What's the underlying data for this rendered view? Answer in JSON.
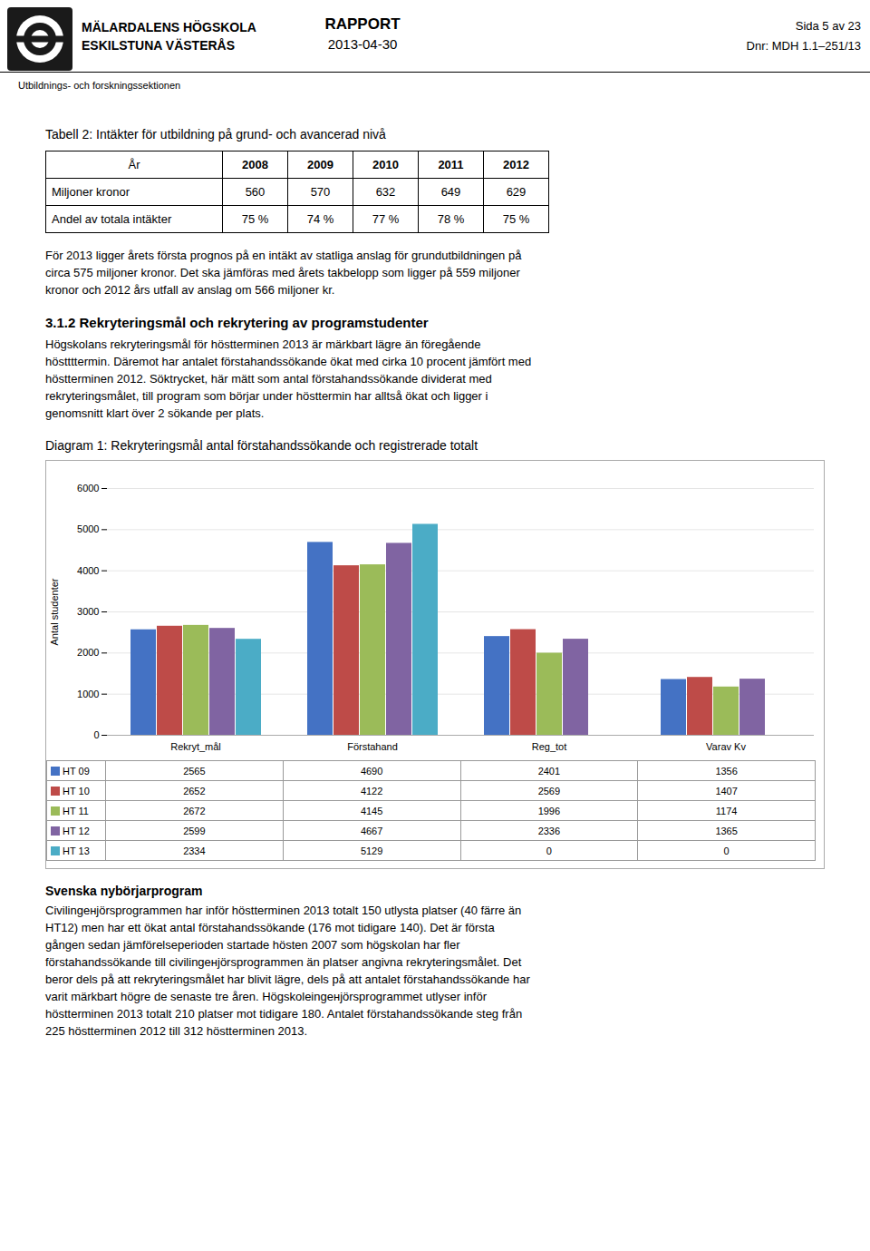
{
  "page_header": {
    "left": [
      "MÄLARDALENS HÖGSKOLA",
      "ESKILSTUNA VÄSTERÅS"
    ],
    "center": [
      "RAPPORT",
      "2013-04-30"
    ],
    "right": [
      "Sida 5 av 23",
      "Dnr: MDH 1.1–251/13"
    ]
  },
  "section_label": "Utbildnings- och forskningssektionen",
  "chart_data": [
    {
      "type": "table",
      "title": "Tabell 2: Intäkter för utbildning på grund- och avancerad nivå",
      "columns": [
        "År",
        "2008",
        "2009",
        "2010",
        "2011",
        "2012"
      ],
      "rows": [
        {
          "name": "Miljoner kronor",
          "values": [
            560,
            570,
            632,
            649,
            629
          ]
        },
        {
          "name": "Andel av totala intäkter",
          "values": [
            75,
            74,
            77,
            78,
            75
          ],
          "value_labels": [
            "75 %",
            "74 %",
            "77 %",
            "78 %",
            "75 %"
          ]
        }
      ]
    },
    {
      "type": "bar",
      "title": "Diagram 1: Rekryteringsmål antal förstahandssökande och registrerade totalt",
      "categories": [
        "Rekryt_mål",
        "Förstahand",
        "Reg_tot",
        "Varav Kv"
      ],
      "series": [
        {
          "name": "HT 09",
          "color": "#4472C4",
          "values": [
            2565,
            4690,
            2401,
            1356
          ]
        },
        {
          "name": "HT 10",
          "color": "#BE4B48",
          "values": [
            2652,
            4122,
            2569,
            1407
          ]
        },
        {
          "name": "HT 11",
          "color": "#9BBB59",
          "values": [
            2672,
            4145,
            1996,
            1174
          ]
        },
        {
          "name": "HT 12",
          "color": "#8064A2",
          "values": [
            2599,
            4667,
            2336,
            1365
          ]
        },
        {
          "name": "HT 13",
          "color": "#4BACC6",
          "values": [
            2334,
            5129,
            0,
            0
          ]
        }
      ],
      "ylabel": "Antal studenter",
      "ylim": [
        0,
        6000
      ],
      "yticks": [
        0,
        1000,
        2000,
        3000,
        4000,
        5000,
        6000
      ],
      "grid": true
    }
  ],
  "paragraphs": [
    {
      "lines": [
        "För 2013 ligger årets första prognos på en intäkt av statliga anslag för grundutbildningen på",
        "circa 575 miljoner kronor. Det ska jämföras med årets takbelopp som ligger på 559 miljoner",
        "kronor och 2012 års utfall av anslag om 566 miljoner kr."
      ]
    },
    {
      "heading": "3.1.2 Rekryteringsmål och rekrytering av programstudenter",
      "lines": [
        "Högskolans rekryteringsmål för höstterminen 2013 är märkbart lägre än föregående",
        "hösttttermin. Däremot har antalet förstahandssökande ökat med cirka 10 procent jämfört med",
        "höstterminen 2012. Söktrycket, här mätt som antal förstahandssökande dividerat med",
        "rekryteringsmålet, till program som börjar under hösttermin har alltså ökat och ligger i",
        "genomsnitt klart över 2 sökande per plats."
      ]
    },
    {
      "heading": "Svenska nybörjarprogram",
      "lines": [
        "Civilingенjörsprogrammen har inför höstterminen 2013 totalt 150 utlysta platser (40 färre än",
        "HT12) men har ett ökat antal förstahandssökande (176 mot tidigare 140). Det är första",
        "gången sedan jämförelseperioden startade hösten 2007 som högskolan har fler",
        "förstahandssökande till civilingенjörsprogrammen än platser angivna rekryteringsmålet. Det",
        "beror dels på att rekryteringsmålet har blivit lägre, dels på att antalet förstahandssökande har",
        "varit märkbart högre de senaste tre åren. Högskoleingенjörsprogrammet utlyser inför",
        "höstterminen 2013 totalt 210 platser mot tidigare 180. Antalet förstahandssökande steg från",
        "225 höstterminen 2012 till 312 höstterminen 2013."
      ]
    }
  ]
}
